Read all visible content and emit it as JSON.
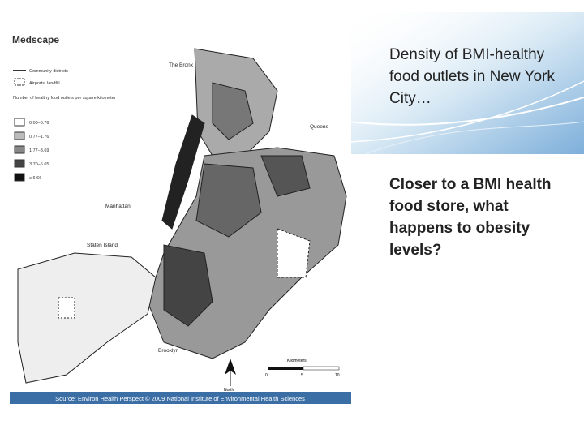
{
  "slide": {
    "title": "Density of BMI-healthy food outlets in New York City…",
    "body": "Closer to a BMI health food store, what happens to obesity levels?"
  },
  "map": {
    "logo": "Medscape",
    "legend": [
      "Community districts",
      "Airports, landfill"
    ],
    "legend_title": "Number of healthy food outlets per square kilometer",
    "classes": [
      "0.00–0.76",
      "0.77–1.76",
      "1.77–3.69",
      "3.70–6.65",
      "≥ 6.66"
    ],
    "places": [
      "The Bronx",
      "Queens",
      "Manhattan",
      "Staten Island",
      "Brooklyn"
    ],
    "scale": {
      "title": "Kilometers",
      "ticks": [
        "0",
        "5",
        "10"
      ]
    },
    "north": "North",
    "source": "Source: Environ Health Perspect © 2009 National Institute of Environmental Health Sciences"
  }
}
